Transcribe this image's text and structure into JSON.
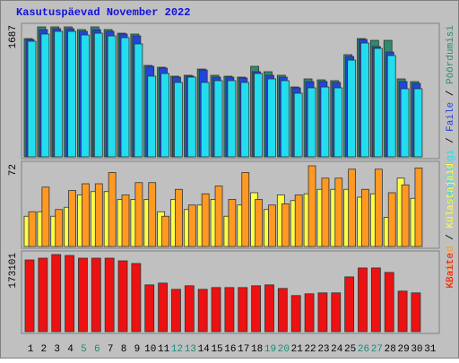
{
  "chart_data": [
    {
      "type": "bar",
      "title": "Kasutuspäevad November 2022",
      "ylim": [
        0,
        1687
      ],
      "yticks": [
        1687
      ],
      "legend_separator": " / ",
      "series": [
        {
          "name": "Pöördumisi",
          "color": "#2e8b6e",
          "values": [
            1535,
            1687,
            1687,
            1687,
            1652,
            1687,
            1652,
            1605,
            1594,
            1187,
            1163,
            1047,
            1059,
            1140,
            1059,
            1047,
            1035,
            1175,
            1105,
            1059,
            907,
            1012,
            1000,
            989,
            1326,
            1535,
            1512,
            1512,
            1012,
            977,
            null
          ]
        },
        {
          "name": "Faile",
          "color": "#2244dd",
          "values": [
            1524,
            1652,
            1663,
            1663,
            1629,
            1652,
            1629,
            1594,
            1570,
            1175,
            1152,
            1035,
            1047,
            1128,
            1035,
            1035,
            1024,
            1105,
            1059,
            1035,
            896,
            977,
            977,
            966,
            1303,
            1524,
            1431,
            1361,
            977,
            954,
            null
          ]
        },
        {
          "name": "Lehekülgi",
          "color": "#22ddee",
          "values": [
            1500,
            1594,
            1629,
            1629,
            1582,
            1605,
            1570,
            1547,
            1466,
            1047,
            1082,
            966,
            1035,
            966,
            989,
            989,
            966,
            1082,
            1012,
            989,
            826,
            896,
            907,
            896,
            1256,
            1477,
            1408,
            1315,
            884,
            884,
            null
          ]
        }
      ]
    },
    {
      "type": "bar",
      "ylim": [
        0,
        72
      ],
      "yticks": [
        72
      ],
      "series": [
        {
          "name": "Külastajaid",
          "color": "#ffff44",
          "values": [
            27,
            31,
            27,
            35,
            46,
            49,
            49,
            42,
            42,
            42,
            31,
            42,
            33,
            37,
            42,
            27,
            37,
            48,
            33,
            46,
            41,
            47,
            51,
            51,
            51,
            44,
            47,
            26,
            61,
            43,
            null
          ]
        },
        {
          "name": "Arvutid",
          "color": "#ff9922",
          "values": [
            31,
            53,
            33,
            50,
            56,
            56,
            66,
            46,
            57,
            57,
            27,
            51,
            37,
            47,
            54,
            42,
            66,
            42,
            37,
            38,
            46,
            72,
            61,
            61,
            69,
            51,
            69,
            48,
            55,
            70,
            null
          ]
        }
      ]
    },
    {
      "type": "bar",
      "ylim": [
        0,
        173101
      ],
      "yticks": [
        173101
      ],
      "categories": [
        "1",
        "2",
        "3",
        "4",
        "5",
        "6",
        "7",
        "8",
        "9",
        "10",
        "11",
        "12",
        "13",
        "14",
        "15",
        "16",
        "17",
        "18",
        "19",
        "20",
        "21",
        "22",
        "23",
        "24",
        "25",
        "26",
        "27",
        "28",
        "29",
        "30",
        "31"
      ],
      "category_label_colors": [
        "#000",
        "#000",
        "#000",
        "#000",
        "#1a8a7a",
        "#1a8a7a",
        "#000",
        "#000",
        "#000",
        "#000",
        "#000",
        "#1a8a7a",
        "#1a8a7a",
        "#000",
        "#000",
        "#000",
        "#000",
        "#000",
        "#1a8a7a",
        "#1a8a7a",
        "#000",
        "#000",
        "#000",
        "#000",
        "#000",
        "#1a8a7a",
        "#1a8a7a",
        "#000",
        "#000",
        "#000",
        "#000"
      ],
      "series": [
        {
          "name": "KBaite",
          "color": "#ee1111",
          "values": [
            161000,
            165000,
            173101,
            171000,
            165000,
            165000,
            165000,
            159000,
            153000,
            105000,
            109000,
            95000,
            103000,
            95000,
            99000,
            99000,
            99000,
            103000,
            105000,
            97000,
            81000,
            85000,
            87000,
            87000,
            123000,
            143000,
            143000,
            133000,
            91000,
            87000,
            null
          ]
        }
      ]
    }
  ]
}
